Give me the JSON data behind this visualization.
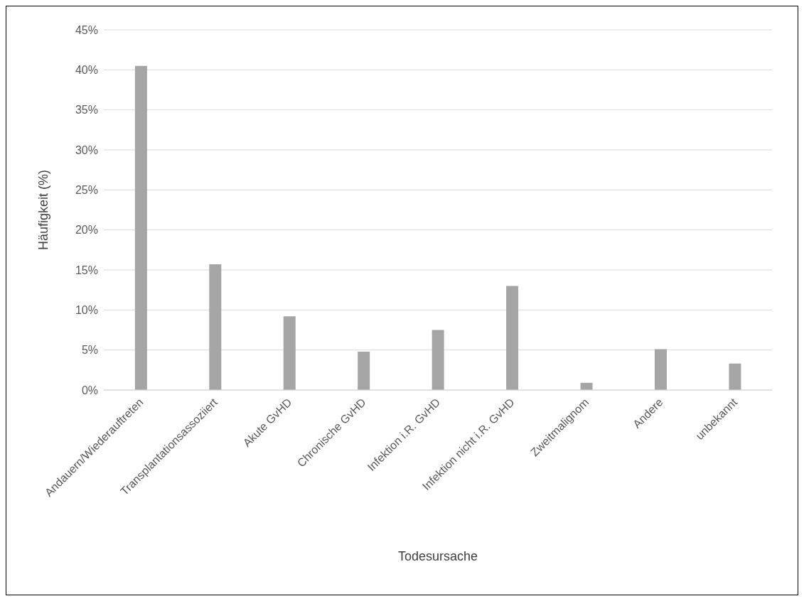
{
  "chart_data": {
    "type": "bar",
    "xlabel": "Todesursache",
    "ylabel": "Häufigkeit (%)",
    "categories": [
      "Andauern/Wiederauftreten",
      "Transplantationsassoziiert",
      "Akute GvHD",
      "Chronische GvHD",
      "Infektion i.R. GvHD",
      "Infektion nicht i.R. GvHD",
      "Zweitmalignom",
      "Andere",
      "unbekannt"
    ],
    "values": [
      40.5,
      15.7,
      9.2,
      4.8,
      7.5,
      13.0,
      0.9,
      5.1,
      3.3
    ],
    "color": "#a5a5a5",
    "ylim": [
      0,
      45
    ],
    "yticks": [
      {
        "value": 0,
        "label": "0%"
      },
      {
        "value": 5,
        "label": "5%"
      },
      {
        "value": 10,
        "label": "10%"
      },
      {
        "value": 15,
        "label": "15%"
      },
      {
        "value": 20,
        "label": "20%"
      },
      {
        "value": 25,
        "label": "25%"
      },
      {
        "value": 30,
        "label": "30%"
      },
      {
        "value": 35,
        "label": "35%"
      },
      {
        "value": 40,
        "label": "40%"
      },
      {
        "value": 45,
        "label": "45%"
      }
    ],
    "grid": "y"
  }
}
